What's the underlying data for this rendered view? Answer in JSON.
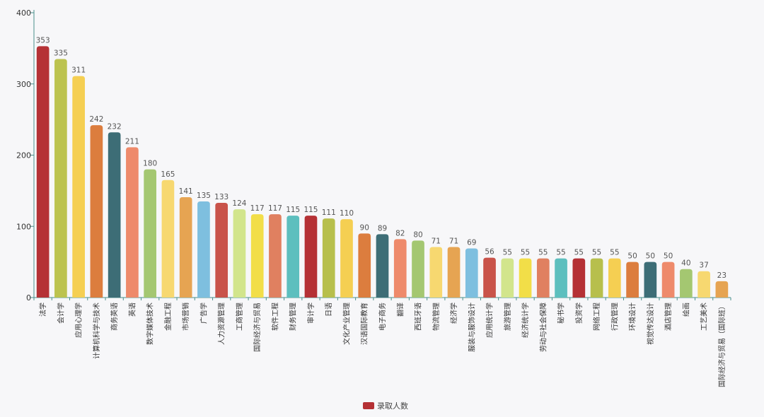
{
  "chart_data": {
    "type": "bar",
    "title": "",
    "xlabel": "",
    "ylabel": "",
    "ylim": [
      0,
      400
    ],
    "yticks": [
      0,
      100,
      200,
      300,
      400
    ],
    "grid": false,
    "legend_position": "bottom-center",
    "categories": [
      "法学",
      "会计学",
      "应用心理学",
      "计算机科学与技术",
      "商务英语",
      "英语",
      "数字媒体技术",
      "金融工程",
      "市场营销",
      "广告学",
      "人力资源管理",
      "工商管理",
      "国际经济与贸易",
      "软件工程",
      "财务管理",
      "审计学",
      "日语",
      "文化产业管理",
      "汉语国际教育",
      "电子商务",
      "翻译",
      "西班牙语",
      "物流管理",
      "经济学",
      "服装与服饰设计",
      "应用统计学",
      "旅游管理",
      "经济统计学",
      "劳动与社会保障",
      "秘书学",
      "投资学",
      "网络工程",
      "行政管理",
      "环境设计",
      "视觉传达设计",
      "酒店管理",
      "绘画",
      "工艺美术",
      "国际经济与贸易（国际班）"
    ],
    "series": [
      {
        "name": "录取人数",
        "values": [
          353,
          335,
          311,
          242,
          232,
          211,
          180,
          165,
          141,
          135,
          133,
          124,
          117,
          117,
          115,
          115,
          111,
          110,
          90,
          89,
          82,
          80,
          71,
          71,
          69,
          56,
          55,
          55,
          55,
          55,
          55,
          55,
          55,
          50,
          50,
          50,
          40,
          37,
          23
        ]
      }
    ],
    "bar_colors": [
      "#b53135",
      "#bcc34f",
      "#f5cf52",
      "#dc7d3e",
      "#3d6d76",
      "#ee8a6b",
      "#a4c771",
      "#f7d870",
      "#e6a452",
      "#7ebfdf",
      "#c9534a",
      "#d2e58c",
      "#f2de48",
      "#e08060",
      "#5dbfbe",
      "#b53135",
      "#b7bf4c",
      "#f5cf52",
      "#dc7d3e",
      "#3d6d76",
      "#ee8a6b",
      "#a4c771",
      "#f7d870",
      "#e6a452",
      "#7ebfdf",
      "#c9534a",
      "#d2e58c",
      "#f2de48",
      "#e08060",
      "#5dbfbe",
      "#b53135",
      "#b7bf4c",
      "#f5cf52",
      "#dc7d3e",
      "#3d6d76",
      "#ee8a6b",
      "#a4c771",
      "#f7d870",
      "#e6a452"
    ],
    "legend_color": "#b53135"
  }
}
